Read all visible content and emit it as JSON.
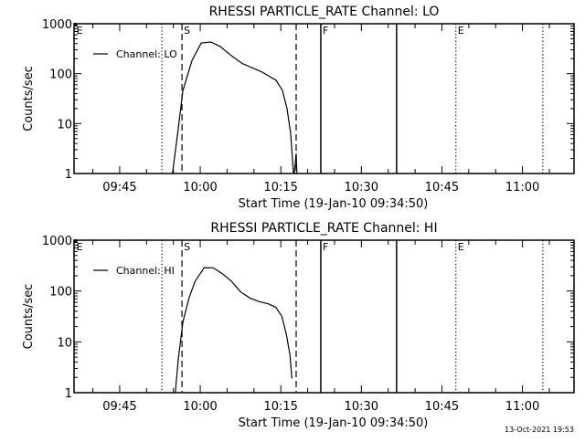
{
  "timestamp": "13-Oct-2021 19:53",
  "chart_data": [
    {
      "type": "line",
      "title": "RHESSI PARTICLE_RATE Channel: LO",
      "xlabel": "Start Time (19-Jan-10 09:34:50)",
      "ylabel": "Counts/sec",
      "yscale": "log",
      "ylim": [
        1,
        1000
      ],
      "xlim_minutes_after_0900": [
        36.5,
        129.6
      ],
      "x_tick_labels": [
        {
          "t": 45,
          "label": "09:45"
        },
        {
          "t": 60,
          "label": "10:00"
        },
        {
          "t": 75,
          "label": "10:15"
        },
        {
          "t": 90,
          "label": "10:30"
        },
        {
          "t": 105,
          "label": "10:45"
        },
        {
          "t": 120,
          "label": "11:00"
        }
      ],
      "y_tick_labels": [
        {
          "v": 1,
          "label": "1"
        },
        {
          "v": 10,
          "label": "10"
        },
        {
          "v": 100,
          "label": "100"
        },
        {
          "v": 1000,
          "label": "1000"
        }
      ],
      "legend": {
        "label": "Channel: LO",
        "placement": "top-left"
      },
      "series": [
        {
          "name": "Channel: LO",
          "x": [
            54.83,
            55.87,
            56.77,
            58.47,
            60.17,
            61.97,
            63.71,
            65.78,
            67.82,
            71.34,
            74.12,
            75.31,
            76.16,
            76.84,
            77.35
          ],
          "y": [
            1,
            7.4,
            46,
            185,
            410,
            430,
            350,
            230,
            160,
            110,
            74,
            46,
            20,
            6.3,
            1
          ]
        },
        {
          "name": "Channel: LO blip",
          "x": [
            77.5,
            77.86,
            78.0
          ],
          "y": [
            1,
            2.5,
            1
          ]
        }
      ],
      "markers": [
        {
          "t": 36.6,
          "style": "none",
          "label": "E"
        },
        {
          "t": 52.86,
          "style": "dotted",
          "label": ""
        },
        {
          "t": 56.6,
          "style": "dashed",
          "label": "S"
        },
        {
          "t": 77.86,
          "style": "dashed",
          "label": ""
        },
        {
          "t": 82.45,
          "style": "solid",
          "label": "F"
        },
        {
          "t": 96.56,
          "style": "solid",
          "label": ""
        },
        {
          "t": 107.6,
          "style": "dotted",
          "label": "E"
        },
        {
          "t": 123.8,
          "style": "dotted",
          "label": ""
        }
      ]
    },
    {
      "type": "line",
      "title": "RHESSI PARTICLE_RATE Channel: HI",
      "xlabel": "Start Time (19-Jan-10 09:34:50)",
      "ylabel": "Counts/sec",
      "yscale": "log",
      "ylim": [
        1,
        1000
      ],
      "xlim_minutes_after_0900": [
        36.5,
        129.6
      ],
      "x_tick_labels": [
        {
          "t": 45,
          "label": "09:45"
        },
        {
          "t": 60,
          "label": "10:00"
        },
        {
          "t": 75,
          "label": "10:15"
        },
        {
          "t": 90,
          "label": "10:30"
        },
        {
          "t": 105,
          "label": "10:45"
        },
        {
          "t": 120,
          "label": "11:00"
        }
      ],
      "y_tick_labels": [
        {
          "v": 1,
          "label": "1"
        },
        {
          "v": 10,
          "label": "10"
        },
        {
          "v": 100,
          "label": "100"
        },
        {
          "v": 1000,
          "label": "1000"
        }
      ],
      "legend": {
        "label": "Channel: HI",
        "placement": "top-left"
      },
      "series": [
        {
          "name": "Channel: HI",
          "x": [
            55.36,
            55.92,
            56.77,
            57.91,
            59.03,
            60.73,
            62.43,
            64.13,
            65.83,
            67.53,
            69.23,
            70.94,
            72.64,
            74.06,
            75.19,
            76.04,
            76.72,
            77.06
          ],
          "y": [
            1,
            4.7,
            24.5,
            73,
            155,
            288,
            285,
            219,
            155,
            96,
            73,
            62,
            56,
            48,
            32,
            14,
            5.4,
            1.9
          ]
        }
      ],
      "markers": [
        {
          "t": 36.6,
          "style": "none",
          "label": "E"
        },
        {
          "t": 52.86,
          "style": "dotted",
          "label": ""
        },
        {
          "t": 56.6,
          "style": "dashed",
          "label": "S"
        },
        {
          "t": 77.86,
          "style": "dashed",
          "label": ""
        },
        {
          "t": 82.45,
          "style": "solid",
          "label": "F"
        },
        {
          "t": 96.56,
          "style": "solid",
          "label": ""
        },
        {
          "t": 107.6,
          "style": "dotted",
          "label": "E"
        },
        {
          "t": 123.8,
          "style": "dotted",
          "label": ""
        }
      ]
    }
  ]
}
